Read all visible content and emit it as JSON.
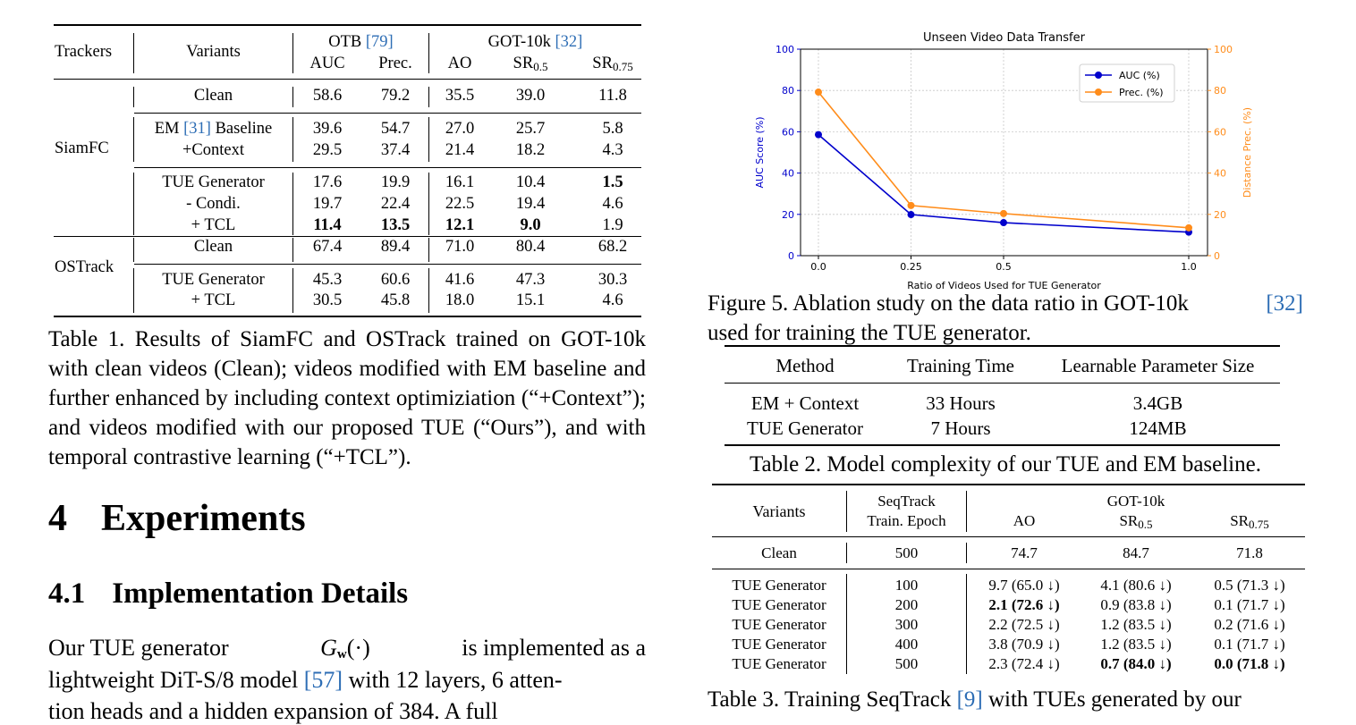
{
  "table1": {
    "headers": {
      "trackers": "Trackers",
      "variants": "Variants",
      "otb": "OTB",
      "otb_ref": "[79]",
      "got": "GOT-10k",
      "got_ref": "[32]",
      "auc": "AUC",
      "prec": "Prec.",
      "ao": "AO",
      "sr": "SR",
      "sr05_sub": "0.5",
      "sr075_sub": "0.75"
    },
    "trackers": [
      "SiamFC",
      "OSTrack"
    ],
    "rows": [
      {
        "variant": "Clean",
        "auc": "58.6",
        "prec": "79.2",
        "ao": "35.5",
        "sr05": "39.0",
        "sr075": "11.8"
      },
      {
        "variant_pre": "EM",
        "variant_ref": "[31]",
        "variant_post": "Baseline",
        "auc": "39.6",
        "prec": "54.7",
        "ao": "27.0",
        "sr05": "25.7",
        "sr075": "5.8"
      },
      {
        "variant": "+Context",
        "auc": "29.5",
        "prec": "37.4",
        "ao": "21.4",
        "sr05": "18.2",
        "sr075": "4.3"
      },
      {
        "variant": "TUE Generator",
        "auc": "17.6",
        "prec": "19.9",
        "ao": "16.1",
        "sr05": "10.4",
        "sr075": "1.5"
      },
      {
        "variant": "- Condi.",
        "auc": "19.7",
        "prec": "22.4",
        "ao": "22.5",
        "sr05": "19.4",
        "sr075": "4.6"
      },
      {
        "variant": "+ TCL",
        "auc": "11.4",
        "prec": "13.5",
        "ao": "12.1",
        "sr05": "9.0",
        "sr075": "1.9"
      },
      {
        "variant": "Clean",
        "auc": "67.4",
        "prec": "89.4",
        "ao": "71.0",
        "sr05": "80.4",
        "sr075": "68.2"
      },
      {
        "variant": "TUE Generator",
        "auc": "45.3",
        "prec": "60.6",
        "ao": "41.6",
        "sr05": "47.3",
        "sr075": "30.3"
      },
      {
        "variant": "+ TCL",
        "auc": "30.5",
        "prec": "45.8",
        "ao": "18.0",
        "sr05": "15.1",
        "sr075": "4.6"
      }
    ],
    "caption": "Table 1. Results of SiamFC and OSTrack trained on GOT-10k with clean videos (Clean); videos modified with EM baseline and further enhanced by including context optimiziation (“+Context”); and videos modified with our proposed TUE (“Ours”), and with temporal contrastive learning (“+TCL”)."
  },
  "section": {
    "num": "4",
    "title": "Experiments"
  },
  "subsection": {
    "num": "4.1",
    "title": "Implementation Details"
  },
  "body": {
    "l1a": "Our TUE generator",
    "l1b": "is implemented as a",
    "l2a": "lightweight DiT-S/8 model",
    "ref57": "[57]",
    "l2b": "with 12 layers, 6 atten-",
    "l3": "tion heads and a hidden expansion of 384. A full"
  },
  "chart_data": {
    "type": "line",
    "title": "Unseen Video Data Transfer",
    "xlabel": "Ratio of Videos Used for TUE Generator",
    "ylabel": "AUC Score (%)",
    "ylabel_right": "Distance Prec. (%)",
    "x": [
      0.0,
      0.25,
      0.5,
      1.0
    ],
    "x_ticks": [
      "0.0",
      "0.25",
      "0.5",
      "1.0"
    ],
    "y_ticks": [
      "0",
      "20",
      "40",
      "60",
      "80",
      "100"
    ],
    "ylim": [
      0,
      100
    ],
    "grid": true,
    "legend": "top-right",
    "series": [
      {
        "name": "AUC (%)",
        "values": [
          58.6,
          19.9,
          16.0,
          11.4
        ],
        "color": "#0000cc"
      },
      {
        "name": "Prec. (%)",
        "values": [
          79.2,
          24.3,
          20.4,
          13.5
        ],
        "color": "#ff8c1a"
      }
    ]
  },
  "fig5": {
    "caption_a": "Figure 5. Ablation study on the data ratio in GOT-10k",
    "ref": "[32]",
    "caption_b": "used for training the TUE generator."
  },
  "table2": {
    "headers": [
      "Method",
      "Training Time",
      "Learnable Parameter Size"
    ],
    "rows": [
      [
        "EM + Context",
        "33 Hours",
        "3.4GB"
      ],
      [
        "TUE Generator",
        "7 Hours",
        "124MB"
      ]
    ],
    "caption": "Table 2. Model complexity of our TUE and EM baseline."
  },
  "table3": {
    "headers": {
      "variants": "Variants",
      "seq1": "SeqTrack",
      "seq2": "Train. Epoch",
      "got": "GOT-10k",
      "ao": "AO",
      "sr": "SR",
      "sr05_sub": "0.5",
      "sr075_sub": "0.75"
    },
    "rows": [
      {
        "variant": "Clean",
        "epoch": "500",
        "ao": "74.7",
        "sr05": "84.7",
        "sr075": "71.8"
      },
      {
        "variant": "TUE Generator",
        "epoch": "100",
        "ao": "9.7 (65.0 ↓)",
        "sr05": "4.1 (80.6 ↓)",
        "sr075": "0.5 (71.3 ↓)"
      },
      {
        "variant": "TUE Generator",
        "epoch": "200",
        "ao": "2.1 (72.6 ↓)",
        "sr05": "0.9 (83.8 ↓)",
        "sr075": "0.1 (71.7 ↓)"
      },
      {
        "variant": "TUE Generator",
        "epoch": "300",
        "ao": "2.2 (72.5 ↓)",
        "sr05": "1.2 (83.5 ↓)",
        "sr075": "0.2 (71.6 ↓)"
      },
      {
        "variant": "TUE Generator",
        "epoch": "400",
        "ao": "3.8 (70.9 ↓)",
        "sr05": "1.2 (83.5 ↓)",
        "sr075": "0.1 (71.7 ↓)"
      },
      {
        "variant": "TUE Generator",
        "epoch": "500",
        "ao": "2.3 (72.4 ↓)",
        "sr05": "0.7 (84.0 ↓)",
        "sr075": "0.0 (71.8 ↓)"
      }
    ],
    "caption_a": "Table 3. Training SeqTrack",
    "ref": "[9]",
    "caption_b": "with TUEs generated by our"
  }
}
